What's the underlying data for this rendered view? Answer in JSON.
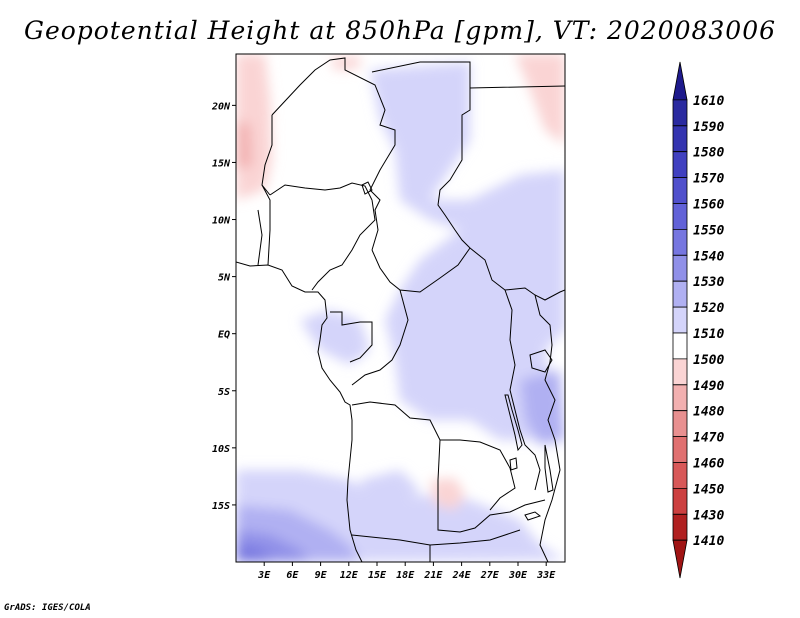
{
  "title": "Geopotential Height at 850hPa [gpm], VT: 2020083006",
  "credit": "GrADS: IGES/COLA",
  "map": {
    "lon_range": [
      0,
      35
    ],
    "lat_range": [
      -20,
      24.5
    ],
    "x_ticks": [
      "3E",
      "6E",
      "9E",
      "12E",
      "15E",
      "18E",
      "21E",
      "24E",
      "27E",
      "30E",
      "33E"
    ],
    "x_tick_values": [
      3,
      6,
      9,
      12,
      15,
      18,
      21,
      24,
      27,
      30,
      33
    ],
    "y_ticks": [
      "20N",
      "15N",
      "10N",
      "5N",
      "EQ",
      "5S",
      "10S",
      "15S"
    ],
    "y_tick_values": [
      20,
      15,
      10,
      5,
      0,
      -5,
      -10,
      -15
    ]
  },
  "colorbar": {
    "labels": [
      "1610",
      "1590",
      "1580",
      "1570",
      "1560",
      "1550",
      "1540",
      "1530",
      "1520",
      "1510",
      "1500",
      "1490",
      "1480",
      "1470",
      "1460",
      "1450",
      "1430",
      "1410"
    ],
    "colors": [
      "#1e1a8c",
      "#2a2aa0",
      "#3434b0",
      "#4040c0",
      "#5050cc",
      "#6262d8",
      "#7676e0",
      "#9090e8",
      "#b0b0f2",
      "#d4d4fa",
      "#ffffff",
      "#fad4d4",
      "#f2b0b0",
      "#e89090",
      "#e07070",
      "#d85858",
      "#cc4040",
      "#b02020",
      "#a01414"
    ]
  },
  "chart_data": {
    "type": "heatmap",
    "title": "Geopotential Height at 850hPa [gpm], VT: 2020083006",
    "variable": "Geopotential Height",
    "level": "850hPa",
    "units": "gpm",
    "valid_time": "2020083006",
    "x_ticks": [
      "3E",
      "6E",
      "9E",
      "12E",
      "15E",
      "18E",
      "21E",
      "24E",
      "27E",
      "30E",
      "33E"
    ],
    "y_ticks": [
      "20N",
      "15N",
      "10N",
      "5N",
      "EQ",
      "5S",
      "10S",
      "15S"
    ],
    "colorbar_levels": [
      1410,
      1430,
      1450,
      1460,
      1470,
      1480,
      1490,
      1500,
      1510,
      1520,
      1530,
      1540,
      1550,
      1560,
      1570,
      1580,
      1590,
      1610
    ]
  }
}
